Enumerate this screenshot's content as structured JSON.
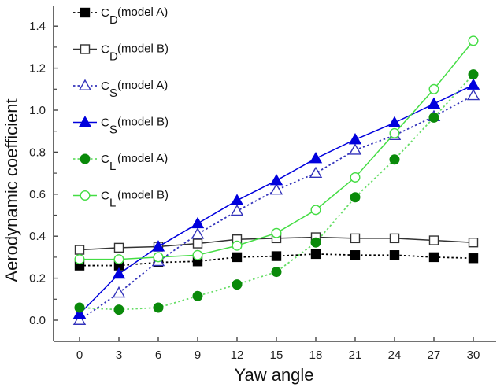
{
  "chart_data": {
    "type": "line",
    "title": "",
    "xlabel": "Yaw angle",
    "ylabel": "Aerodynamic coefficient",
    "x": [
      0,
      3,
      6,
      9,
      12,
      15,
      18,
      21,
      24,
      27,
      30
    ],
    "xticks": [
      "0",
      "3",
      "6",
      "9",
      "12",
      "15",
      "18",
      "21",
      "24",
      "27",
      "30"
    ],
    "yticks": [
      "0.0",
      "0.2",
      "0.4",
      "0.6",
      "0.8",
      "1.0",
      "1.2",
      "1.4"
    ],
    "xlim": [
      -2.0,
      31.8
    ],
    "ylim": [
      -0.1,
      1.5
    ],
    "grid": false,
    "legend_position": "top-left",
    "series": [
      {
        "name": "CD(model A)",
        "base": "C",
        "sub": "D",
        "suffix": "(model A)",
        "color": "#000000",
        "line": "dotted",
        "marker": "square",
        "filled": true,
        "values": [
          0.26,
          0.26,
          0.275,
          0.28,
          0.3,
          0.305,
          0.315,
          0.31,
          0.31,
          0.3,
          0.295
        ]
      },
      {
        "name": "CD(model B)",
        "base": "C",
        "sub": "D",
        "suffix": "(model B)",
        "color": "#333333",
        "line": "solid",
        "marker": "square",
        "filled": false,
        "values": [
          0.335,
          0.345,
          0.35,
          0.365,
          0.385,
          0.39,
          0.395,
          0.39,
          0.39,
          0.38,
          0.37
        ]
      },
      {
        "name": "CS(model A)",
        "base": "C",
        "sub": "S",
        "suffix": "(model A)",
        "color": "#3333bb",
        "line": "dotted",
        "marker": "triangle",
        "filled": false,
        "values": [
          0.0,
          0.13,
          0.28,
          0.41,
          0.52,
          0.62,
          0.7,
          0.81,
          0.88,
          0.97,
          1.07
        ]
      },
      {
        "name": "CS(model B)",
        "base": "C",
        "sub": "S",
        "suffix": "(model B)",
        "color": "#0000dd",
        "line": "solid",
        "marker": "triangle",
        "filled": true,
        "values": [
          0.03,
          0.22,
          0.35,
          0.46,
          0.57,
          0.665,
          0.77,
          0.86,
          0.94,
          1.03,
          1.12
        ]
      },
      {
        "name": "CL(model A)",
        "base": "C",
        "sub": "L",
        "suffix": "(model A)",
        "color": "#0a8a0a",
        "line_color": "#66dd66",
        "line": "dotted",
        "marker": "circle",
        "filled": true,
        "values": [
          0.06,
          0.05,
          0.06,
          0.115,
          0.17,
          0.23,
          0.37,
          0.585,
          0.765,
          0.965,
          1.17
        ]
      },
      {
        "name": "CL(model B)",
        "base": "C",
        "sub": "L",
        "suffix": "(model B)",
        "color": "#44dd44",
        "line": "solid",
        "marker": "circle",
        "filled": false,
        "values": [
          0.29,
          0.29,
          0.3,
          0.31,
          0.355,
          0.415,
          0.525,
          0.68,
          0.89,
          1.1,
          1.33
        ]
      }
    ]
  }
}
